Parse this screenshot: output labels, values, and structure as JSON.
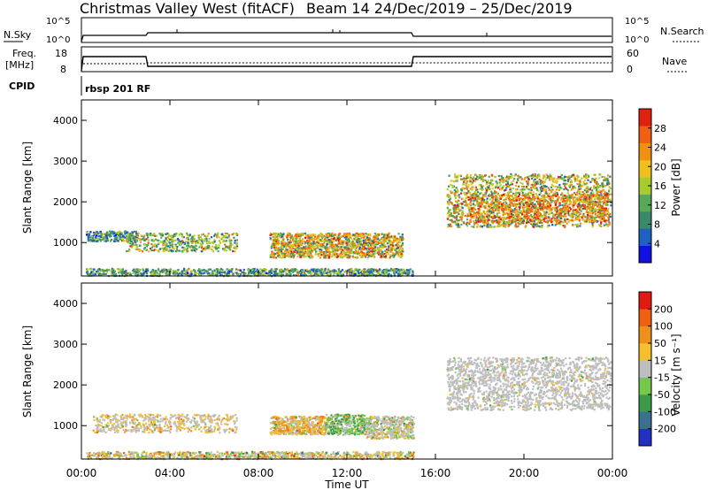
{
  "header": {
    "title_left": "Christmas Valley West (fitACF)",
    "title_right": "Beam 14  24/Dec/2019 – 25/Dec/2019"
  },
  "nsky_panel": {
    "left_label": "N.Sky",
    "left_ticks": [
      "10^5",
      "10^0"
    ],
    "right_ticks": [
      "10^5",
      "10^0"
    ],
    "right_label": "N.Search"
  },
  "freq_panel": {
    "left_label_1": "Freq.",
    "left_label_2": "[MHz]",
    "left_ticks": [
      "18",
      "8"
    ],
    "right_ticks": [
      "60",
      "0"
    ],
    "right_label": "Nave",
    "cpid_label": "CPID",
    "cpid_value": "rbsp 201 RF"
  },
  "chart_data": [
    {
      "type": "heatmap",
      "name": "power",
      "ylabel": "Slant Range [km]",
      "yticks": [
        "4000",
        "3000",
        "2000",
        "1000"
      ],
      "ylim": [
        180,
        4500
      ],
      "xlim_hours": [
        0,
        24
      ],
      "colorbar_label": "Power [dB]",
      "colorbar_ticks": [
        "28",
        "24",
        "20",
        "16",
        "12",
        "8",
        "4"
      ],
      "colorbar_colors": [
        "#1010e0",
        "#2060c0",
        "#3a8a6a",
        "#58a858",
        "#a8cc30",
        "#f0c020",
        "#f09010",
        "#f06010",
        "#e02010"
      ]
    },
    {
      "type": "heatmap",
      "name": "velocity",
      "ylabel": "Slant Range [km]",
      "yticks": [
        "4000",
        "3000",
        "2000",
        "1000"
      ],
      "ylim": [
        180,
        4500
      ],
      "xlim_hours": [
        0,
        24
      ],
      "xlabel": "Time UT",
      "xticks": [
        "00:00",
        "04:00",
        "08:00",
        "12:00",
        "16:00",
        "20:00",
        "00:00"
      ],
      "colorbar_label": "Velocity [m s⁻¹]",
      "colorbar_ticks": [
        "200",
        "100",
        "50",
        "15",
        "-15",
        "-50",
        "-100",
        "-200"
      ],
      "colorbar_colors": [
        "#2030c0",
        "#3a7090",
        "#3c9a4a",
        "#74c84a",
        "#bebebe",
        "#f4c030",
        "#f0901c",
        "#f06010",
        "#e01a10"
      ]
    }
  ]
}
